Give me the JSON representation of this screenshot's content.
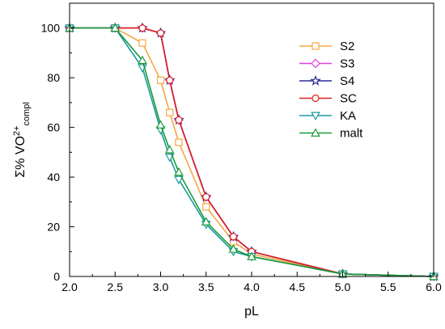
{
  "chart_data": {
    "type": "line",
    "xlabel": "pL",
    "ylabel": {
      "main": "Σ% VO",
      "sup": "2+",
      "sub": "compl"
    },
    "xlim": [
      2.0,
      6.0
    ],
    "ylim": [
      0,
      110
    ],
    "x_ticks": [
      "2.0",
      "2.5",
      "3.0",
      "3.5",
      "4.0",
      "4.5",
      "5.0",
      "5.5",
      "6.0"
    ],
    "y_ticks": [
      "0",
      "20",
      "40",
      "60",
      "80",
      "100"
    ],
    "grid": false,
    "legend_position": "top-right",
    "series": [
      {
        "name": "S2",
        "color": "#f5a742",
        "marker": "square",
        "x": [
          2.0,
          2.5,
          2.8,
          3.0,
          3.1,
          3.2,
          3.5,
          3.8,
          4.0,
          5.0,
          6.0
        ],
        "y": [
          100,
          100,
          94,
          79,
          66,
          54,
          28,
          14,
          9,
          1,
          0
        ]
      },
      {
        "name": "S3",
        "color": "#e03ee0",
        "marker": "diamond",
        "x": [
          2.0,
          2.5,
          2.8,
          3.0,
          3.1,
          3.2,
          3.5,
          3.8,
          4.0,
          5.0,
          6.0
        ],
        "y": [
          100,
          100,
          100,
          98,
          79,
          63,
          32,
          16,
          10,
          1,
          0
        ]
      },
      {
        "name": "S4",
        "color": "#2a2a9a",
        "marker": "star",
        "x": [
          2.0,
          2.5,
          2.8,
          3.0,
          3.1,
          3.2,
          3.5,
          3.8,
          4.0,
          5.0,
          6.0
        ],
        "y": [
          100,
          100,
          100,
          98,
          79,
          63,
          32,
          16,
          10,
          1,
          0
        ]
      },
      {
        "name": "SC",
        "color": "#e02020",
        "marker": "circle",
        "x": [
          2.0,
          2.5,
          2.8,
          3.0,
          3.1,
          3.2,
          3.5,
          3.8,
          4.0,
          5.0,
          6.0
        ],
        "y": [
          100,
          100,
          100,
          98,
          79,
          63,
          32,
          16,
          10,
          1,
          0
        ]
      },
      {
        "name": "KA",
        "color": "#1a9aa0",
        "marker": "triangle-down",
        "x": [
          2.0,
          2.5,
          2.8,
          3.0,
          3.1,
          3.2,
          3.5,
          3.8,
          4.0,
          5.0,
          6.0
        ],
        "y": [
          100,
          100,
          84,
          59,
          48,
          39,
          21,
          10,
          8,
          1,
          0
        ]
      },
      {
        "name": "malt",
        "color": "#1a9a3a",
        "marker": "triangle-up",
        "x": [
          2.0,
          2.5,
          2.8,
          3.0,
          3.1,
          3.2,
          3.5,
          3.8,
          4.0,
          5.0,
          6.0
        ],
        "y": [
          100,
          100,
          87,
          61,
          51,
          42,
          22,
          11,
          8,
          1,
          0
        ]
      }
    ]
  }
}
